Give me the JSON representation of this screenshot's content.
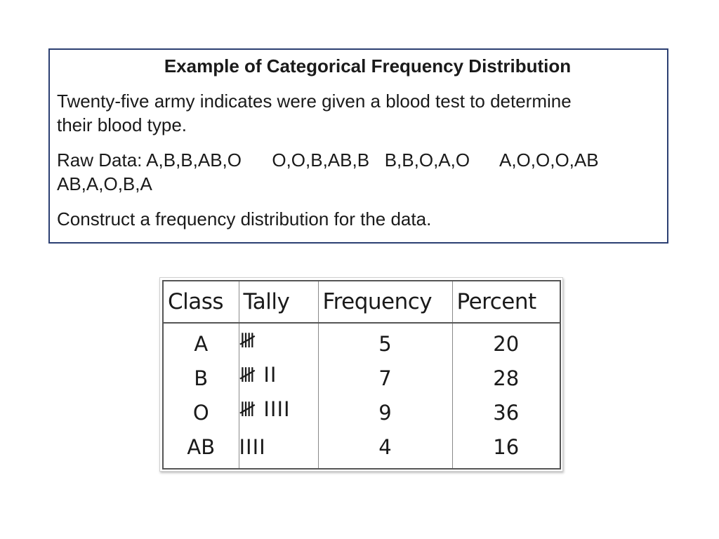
{
  "slide": {
    "title": "Example of Categorical Frequency Distribution",
    "intro_line_1": "Twenty-five army indicates were given a blood test to determine",
    "intro_line_2": "their blood type.",
    "raw_data_line_1": "Raw Data: A,B,B,AB,O      O,O,B,AB,B   B,B,O,A,O      A,O,O,O,AB",
    "raw_data_line_2": "AB,A,O,B,A",
    "instruction": "Construct a frequency distribution for the data."
  },
  "table": {
    "headers": {
      "class": "Class",
      "tally": "Tally",
      "frequency": "Frequency",
      "percent": "Percent"
    },
    "rows": [
      {
        "class": "A",
        "tally": "𝍸",
        "frequency": "5",
        "percent": "20"
      },
      {
        "class": "B",
        "tally": "𝍸 II",
        "frequency": "7",
        "percent": "28"
      },
      {
        "class": "O",
        "tally": "𝍸 IIII",
        "frequency": "9",
        "percent": "36"
      },
      {
        "class": "AB",
        "tally": "IIII",
        "frequency": "4",
        "percent": "16"
      }
    ]
  },
  "colors": {
    "box_border": "#2c3f72",
    "table_border": "#555555"
  }
}
